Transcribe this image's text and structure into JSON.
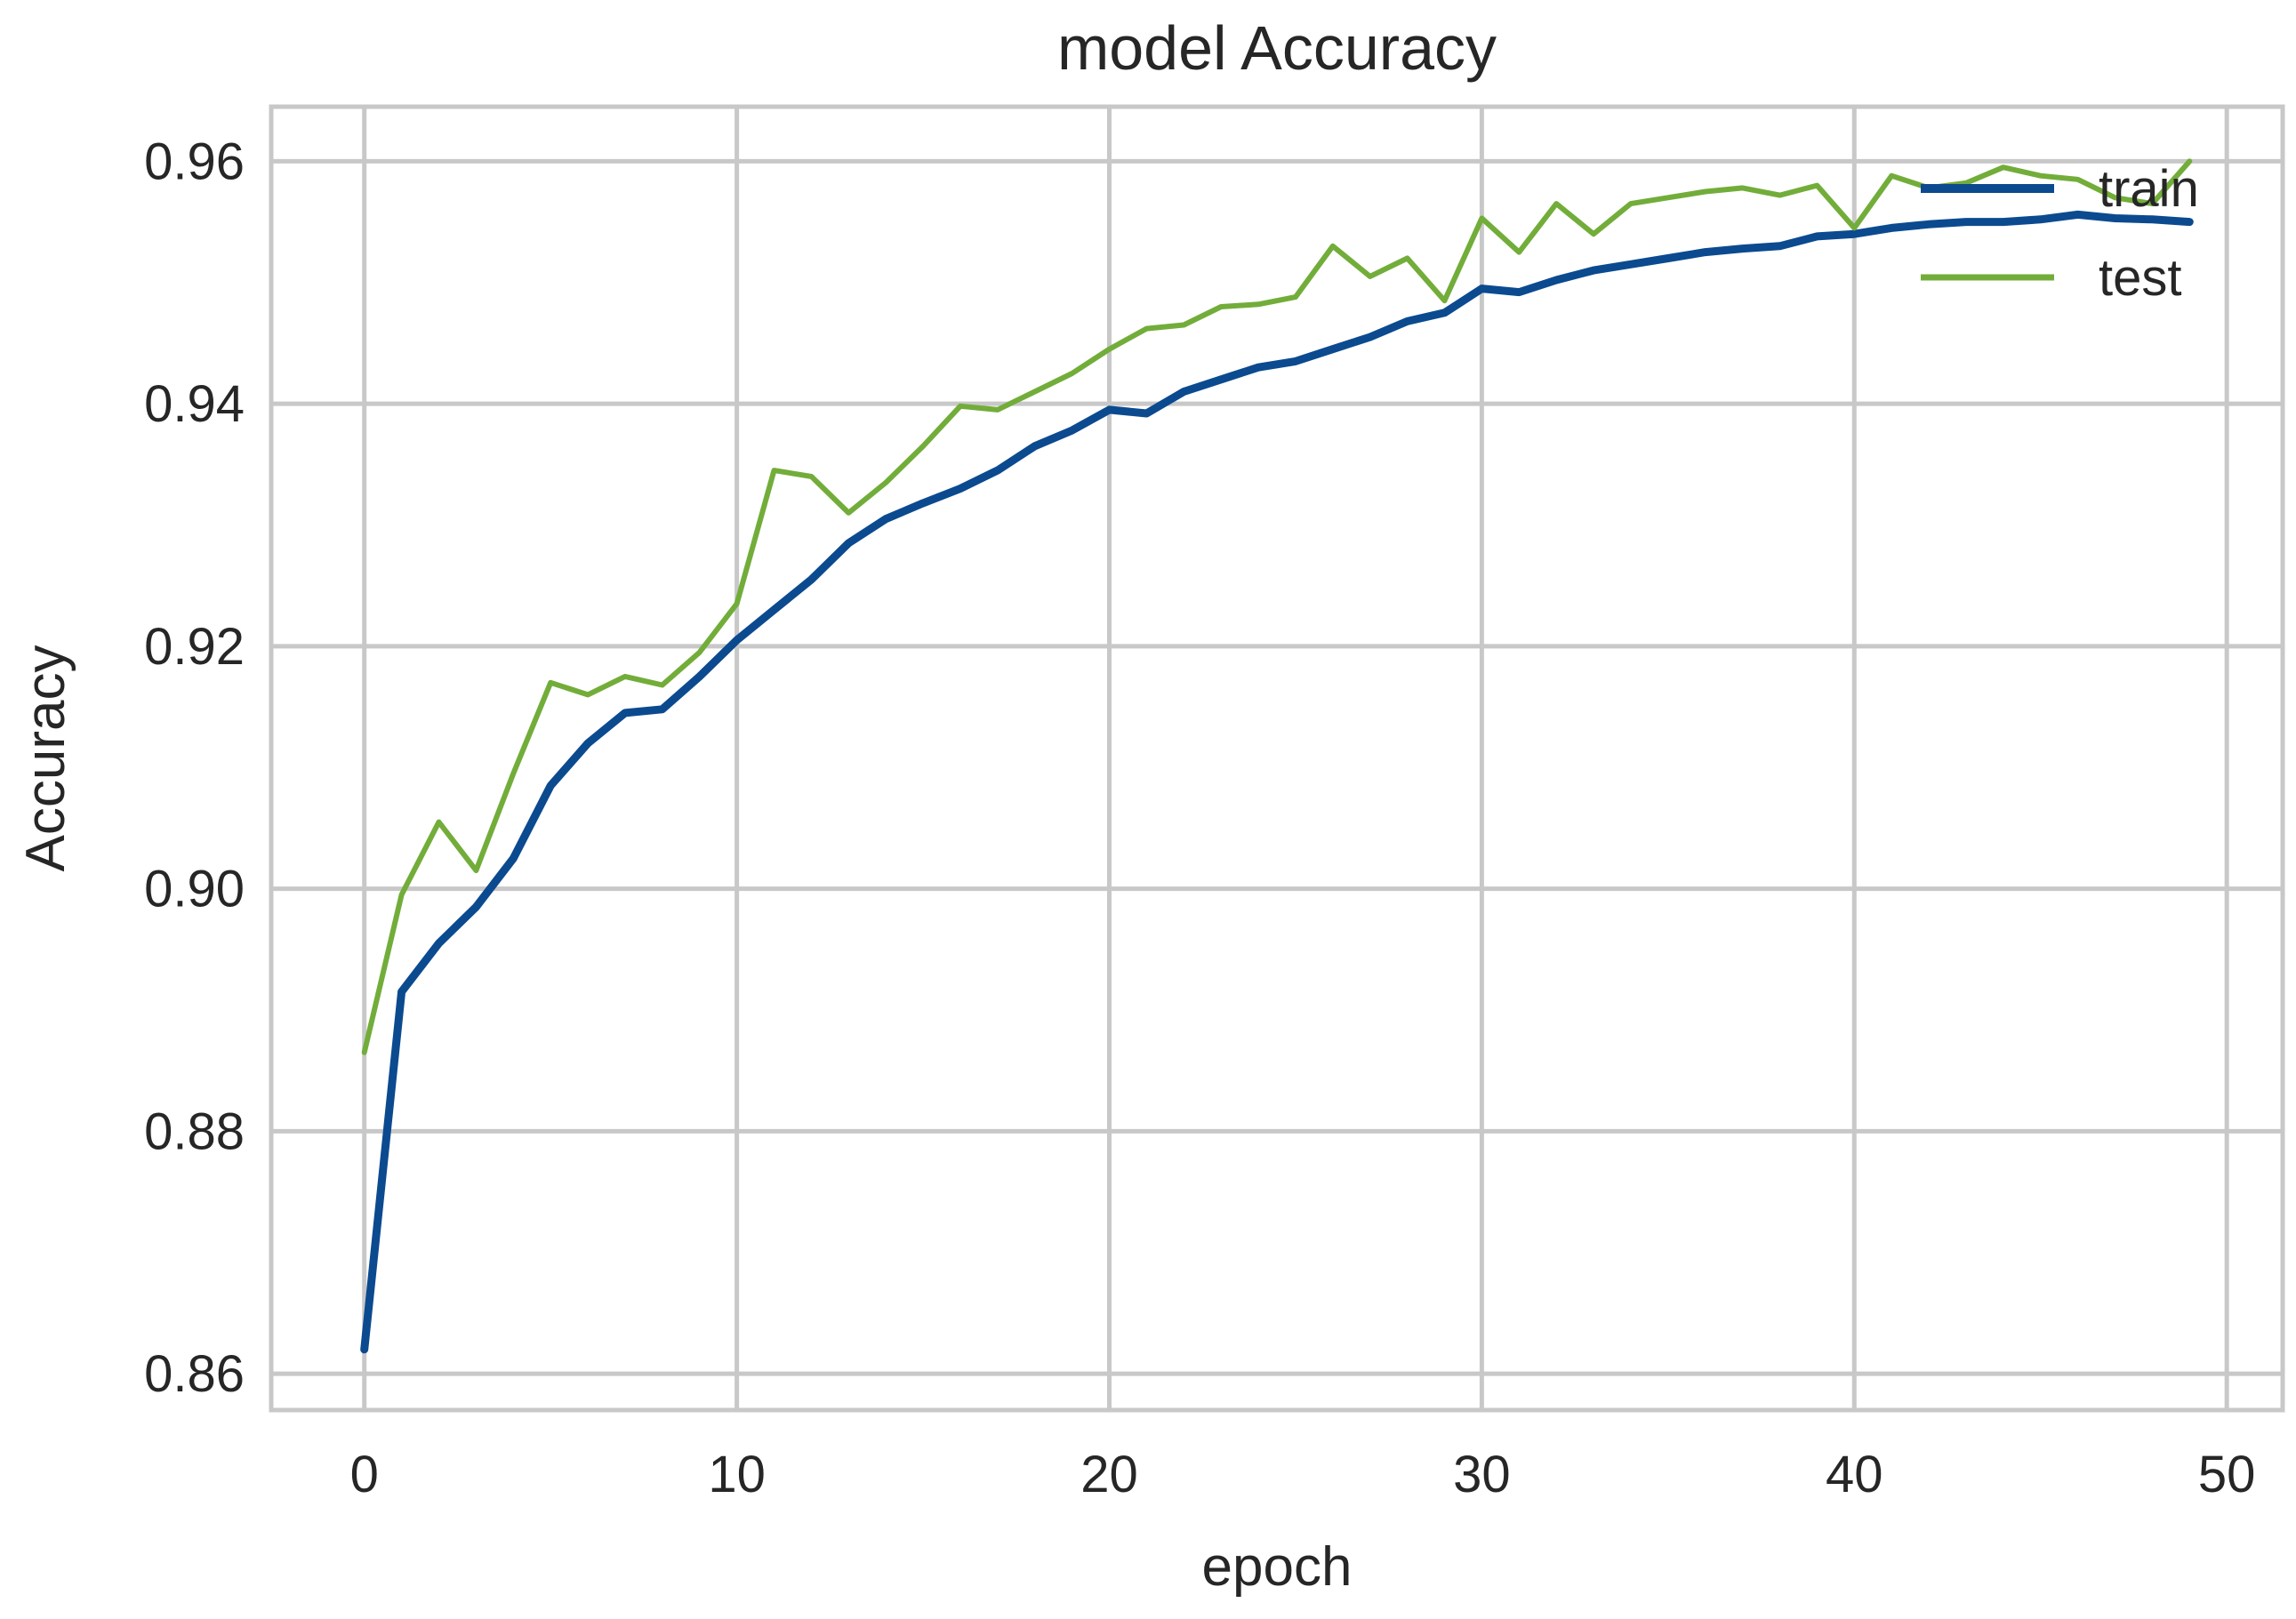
{
  "chart_data": {
    "type": "line",
    "title": "model Accuracy",
    "xlabel": "epoch",
    "ylabel": "Accuracy",
    "xlim": [
      -2.5,
      51.5
    ],
    "ylim": [
      0.857,
      0.9645
    ],
    "xticks": [
      0,
      10,
      20,
      30,
      40,
      50
    ],
    "xtick_labels": [
      "0",
      "10",
      "20",
      "30",
      "40",
      "50"
    ],
    "yticks": [
      0.86,
      0.88,
      0.9,
      0.92,
      0.94,
      0.96
    ],
    "ytick_labels": [
      "0.86",
      "0.88",
      "0.90",
      "0.92",
      "0.94",
      "0.96"
    ],
    "grid": true,
    "legend_position": "top-right",
    "series": [
      {
        "name": "train",
        "color": "#0b4a8f",
        "x": [
          0,
          1,
          2,
          3,
          4,
          5,
          6,
          7,
          8,
          9,
          10,
          11,
          12,
          13,
          14,
          15,
          16,
          17,
          18,
          19,
          20,
          21,
          22,
          23,
          24,
          25,
          26,
          27,
          28,
          29,
          30,
          31,
          32,
          33,
          34,
          35,
          36,
          37,
          38,
          39,
          40,
          41,
          42,
          43,
          44,
          45,
          46,
          47,
          48,
          49
        ],
        "values": [
          0.862,
          0.8915,
          0.8955,
          0.8985,
          0.9025,
          0.9085,
          0.912,
          0.9145,
          0.9148,
          0.9175,
          0.9205,
          0.923,
          0.9255,
          0.9285,
          0.9305,
          0.9318,
          0.933,
          0.9345,
          0.9365,
          0.9378,
          0.9395,
          0.9392,
          0.941,
          0.942,
          0.943,
          0.9435,
          0.9445,
          0.9455,
          0.9468,
          0.9475,
          0.9495,
          0.9492,
          0.9502,
          0.951,
          0.9515,
          0.952,
          0.9525,
          0.9528,
          0.953,
          0.9538,
          0.954,
          0.9545,
          0.9548,
          0.955,
          0.955,
          0.9552,
          0.9556,
          0.9553,
          0.9552,
          0.955
        ]
      },
      {
        "name": "test",
        "color": "#72ad3a",
        "x": [
          0,
          1,
          2,
          3,
          4,
          5,
          6,
          7,
          8,
          9,
          10,
          11,
          12,
          13,
          14,
          15,
          16,
          17,
          18,
          19,
          20,
          21,
          22,
          23,
          24,
          25,
          26,
          27,
          28,
          29,
          30,
          31,
          32,
          33,
          34,
          35,
          36,
          37,
          38,
          39,
          40,
          41,
          42,
          43,
          44,
          45,
          46,
          47,
          48,
          49
        ],
        "values": [
          0.8865,
          0.8995,
          0.9055,
          0.9015,
          0.9095,
          0.917,
          0.916,
          0.9175,
          0.9168,
          0.9195,
          0.9235,
          0.9345,
          0.934,
          0.931,
          0.9335,
          0.9365,
          0.9398,
          0.9395,
          0.941,
          0.9425,
          0.9445,
          0.9462,
          0.9465,
          0.948,
          0.9482,
          0.9488,
          0.953,
          0.9505,
          0.952,
          0.9485,
          0.9553,
          0.9525,
          0.9565,
          0.954,
          0.9565,
          0.957,
          0.9575,
          0.9578,
          0.9572,
          0.958,
          0.9545,
          0.9588,
          0.9578,
          0.9582,
          0.9595,
          0.9588,
          0.9585,
          0.957,
          0.9565,
          0.96
        ]
      }
    ]
  }
}
